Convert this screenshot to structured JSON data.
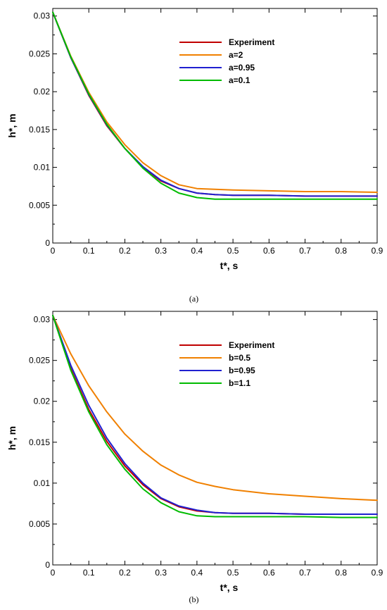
{
  "chart_data": [
    {
      "type": "line",
      "panel_label": "(a)",
      "xlabel": "t*, s",
      "ylabel": "h*, m",
      "xlim": [
        0,
        0.9
      ],
      "ylim": [
        0,
        0.031
      ],
      "xticks": [
        0,
        0.1,
        0.2,
        0.3,
        0.4,
        0.5,
        0.6,
        0.7,
        0.8,
        0.9
      ],
      "yticks": [
        0,
        0.005,
        0.01,
        0.015,
        0.02,
        0.025,
        0.03
      ],
      "xtick_labels": [
        "0",
        "0.1",
        "0.2",
        "0.3",
        "0.4",
        "0.5",
        "0.6",
        "0.7",
        "0.8",
        "0.9"
      ],
      "ytick_labels": [
        "0",
        "0.005",
        "0.01",
        "0.015",
        "0.02",
        "0.025",
        "0.03"
      ],
      "legend_position": "top-right",
      "grid": false,
      "series": [
        {
          "name": "Experiment",
          "color": "#c00000",
          "x": [
            0,
            0.05,
            0.1,
            0.15,
            0.2,
            0.25,
            0.3,
            0.35,
            0.4,
            0.45,
            0.5,
            0.6,
            0.7,
            0.8,
            0.9
          ],
          "y": [
            0.0305,
            0.0245,
            0.0195,
            0.0155,
            0.0125,
            0.01,
            0.0082,
            0.0072,
            0.0066,
            0.0064,
            0.0063,
            0.0063,
            0.0062,
            0.0062,
            0.0062
          ]
        },
        {
          "name": "a=2",
          "color": "#f08000",
          "x": [
            0,
            0.05,
            0.1,
            0.15,
            0.2,
            0.25,
            0.3,
            0.35,
            0.4,
            0.45,
            0.5,
            0.6,
            0.7,
            0.8,
            0.9
          ],
          "y": [
            0.0305,
            0.0247,
            0.0199,
            0.016,
            0.013,
            0.0106,
            0.0089,
            0.0077,
            0.0072,
            0.0071,
            0.007,
            0.0069,
            0.0068,
            0.0068,
            0.0067
          ]
        },
        {
          "name": "a=0.95",
          "color": "#2020d0",
          "x": [
            0,
            0.05,
            0.1,
            0.15,
            0.2,
            0.25,
            0.3,
            0.35,
            0.4,
            0.45,
            0.5,
            0.6,
            0.7,
            0.8,
            0.9
          ],
          "y": [
            0.0305,
            0.0245,
            0.0196,
            0.0156,
            0.0125,
            0.0101,
            0.0083,
            0.0072,
            0.0066,
            0.0064,
            0.0063,
            0.0063,
            0.0062,
            0.0062,
            0.0062
          ]
        },
        {
          "name": "a=0.1",
          "color": "#00bb00",
          "x": [
            0,
            0.05,
            0.1,
            0.15,
            0.2,
            0.25,
            0.3,
            0.35,
            0.4,
            0.45,
            0.5,
            0.6,
            0.7,
            0.8,
            0.9
          ],
          "y": [
            0.0305,
            0.0246,
            0.0197,
            0.0157,
            0.0125,
            0.0099,
            0.0079,
            0.0066,
            0.006,
            0.0058,
            0.0058,
            0.0058,
            0.0058,
            0.0058,
            0.0058
          ]
        }
      ]
    },
    {
      "type": "line",
      "panel_label": "(b)",
      "xlabel": "t*, s",
      "ylabel": "h*, m",
      "xlim": [
        0,
        0.9
      ],
      "ylim": [
        0,
        0.031
      ],
      "xticks": [
        0,
        0.1,
        0.2,
        0.3,
        0.4,
        0.5,
        0.6,
        0.7,
        0.8,
        0.9
      ],
      "yticks": [
        0,
        0.005,
        0.01,
        0.015,
        0.02,
        0.025,
        0.03
      ],
      "xtick_labels": [
        "0",
        "0.1",
        "0.2",
        "0.3",
        "0.4",
        "0.5",
        "0.6",
        "0.7",
        "0.8",
        "0.9"
      ],
      "ytick_labels": [
        "0",
        "0.005",
        "0.01",
        "0.015",
        "0.02",
        "0.025",
        "0.03"
      ],
      "legend_position": "top-right",
      "grid": false,
      "series": [
        {
          "name": "Experiment",
          "color": "#c00000",
          "x": [
            0,
            0.05,
            0.1,
            0.15,
            0.2,
            0.25,
            0.3,
            0.35,
            0.4,
            0.45,
            0.5,
            0.6,
            0.7,
            0.8,
            0.9
          ],
          "y": [
            0.0305,
            0.024,
            0.019,
            0.0151,
            0.0121,
            0.0098,
            0.0081,
            0.0071,
            0.0066,
            0.0064,
            0.0063,
            0.0063,
            0.0062,
            0.0062,
            0.0062
          ]
        },
        {
          "name": "b=0.5",
          "color": "#f08000",
          "x": [
            0,
            0.05,
            0.1,
            0.15,
            0.2,
            0.25,
            0.3,
            0.35,
            0.4,
            0.45,
            0.5,
            0.6,
            0.7,
            0.8,
            0.9
          ],
          "y": [
            0.0305,
            0.0258,
            0.0219,
            0.0187,
            0.016,
            0.0139,
            0.0122,
            0.011,
            0.0101,
            0.0096,
            0.0092,
            0.0087,
            0.0084,
            0.0081,
            0.0079
          ]
        },
        {
          "name": "b=0.95",
          "color": "#2020d0",
          "x": [
            0,
            0.05,
            0.1,
            0.15,
            0.2,
            0.25,
            0.3,
            0.35,
            0.4,
            0.45,
            0.5,
            0.6,
            0.7,
            0.8,
            0.9
          ],
          "y": [
            0.0305,
            0.0244,
            0.0195,
            0.0155,
            0.0124,
            0.01,
            0.0082,
            0.0072,
            0.0067,
            0.0064,
            0.0063,
            0.0063,
            0.0062,
            0.0062,
            0.0062
          ]
        },
        {
          "name": "b=1.1",
          "color": "#00bb00",
          "x": [
            0,
            0.05,
            0.1,
            0.15,
            0.2,
            0.25,
            0.3,
            0.35,
            0.4,
            0.45,
            0.5,
            0.6,
            0.7,
            0.8,
            0.9
          ],
          "y": [
            0.0305,
            0.0238,
            0.0187,
            0.0147,
            0.0117,
            0.0093,
            0.0076,
            0.0065,
            0.006,
            0.0059,
            0.0059,
            0.0059,
            0.0059,
            0.0058,
            0.0058
          ]
        }
      ]
    }
  ]
}
